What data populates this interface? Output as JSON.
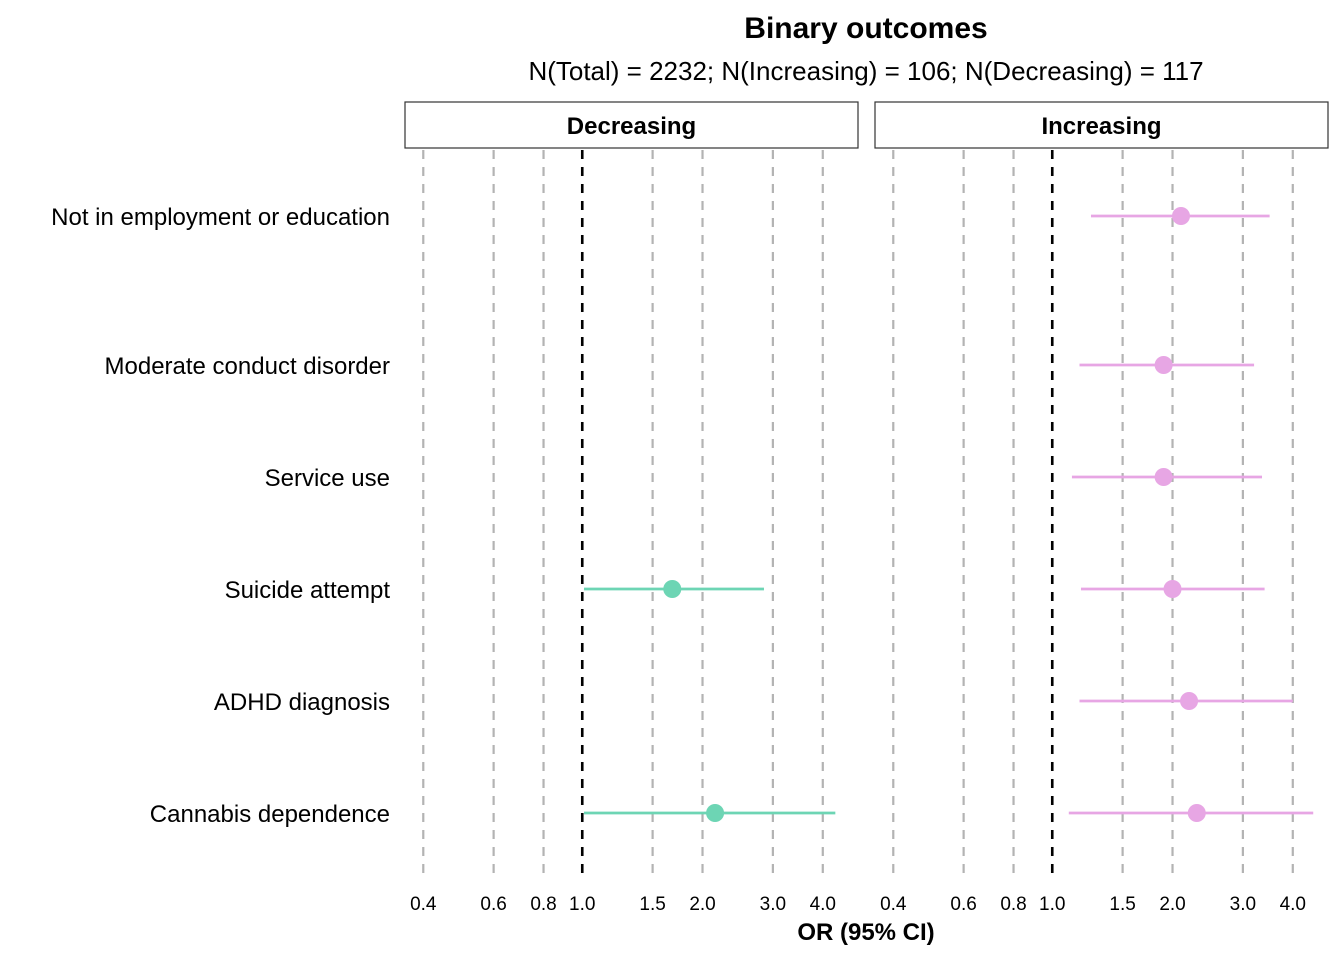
{
  "chart_data": {
    "type": "scatter",
    "title": "Binary outcomes",
    "subtitle": "N(Total) = 2232; N(Increasing) = 106; N(Decreasing) = 117",
    "xlabel": "OR (95% CI)",
    "ylabel": "",
    "x_scale": "log",
    "xlim": [
      0.36,
      4.9
    ],
    "x_ticks": [
      0.4,
      0.6,
      0.8,
      1.0,
      1.5,
      2.0,
      3.0,
      4.0
    ],
    "x_tick_labels": [
      "0.4",
      "0.6",
      "0.8",
      "1.0",
      "1.5",
      "2.0",
      "3.0",
      "4.0"
    ],
    "reference_line": 1.0,
    "grid": "vertical dashed at ticks",
    "categories": [
      "Not in employment or education",
      "Moderate conduct disorder",
      "Service use",
      "Suicide attempt",
      "ADHD diagnosis",
      "Cannabis dependence"
    ],
    "panels": [
      {
        "name": "Decreasing",
        "color": "#6dd5b4",
        "points": [
          {
            "outcome": "Suicide attempt",
            "or": 1.68,
            "lower": 1.01,
            "upper": 2.85
          },
          {
            "outcome": "Cannabis dependence",
            "or": 2.15,
            "lower": 1.01,
            "upper": 4.3
          }
        ]
      },
      {
        "name": "Increasing",
        "color": "#e7a6e4",
        "points": [
          {
            "outcome": "Not in employment or education",
            "or": 2.1,
            "lower": 1.25,
            "upper": 3.5
          },
          {
            "outcome": "Moderate conduct disorder",
            "or": 1.9,
            "lower": 1.17,
            "upper": 3.2
          },
          {
            "outcome": "Service use",
            "or": 1.9,
            "lower": 1.12,
            "upper": 3.35
          },
          {
            "outcome": "Suicide attempt",
            "or": 2.0,
            "lower": 1.18,
            "upper": 3.4
          },
          {
            "outcome": "ADHD diagnosis",
            "or": 2.2,
            "lower": 1.17,
            "upper": 4.0
          },
          {
            "outcome": "Cannabis dependence",
            "or": 2.3,
            "lower": 1.1,
            "upper": 4.5
          }
        ]
      }
    ]
  }
}
